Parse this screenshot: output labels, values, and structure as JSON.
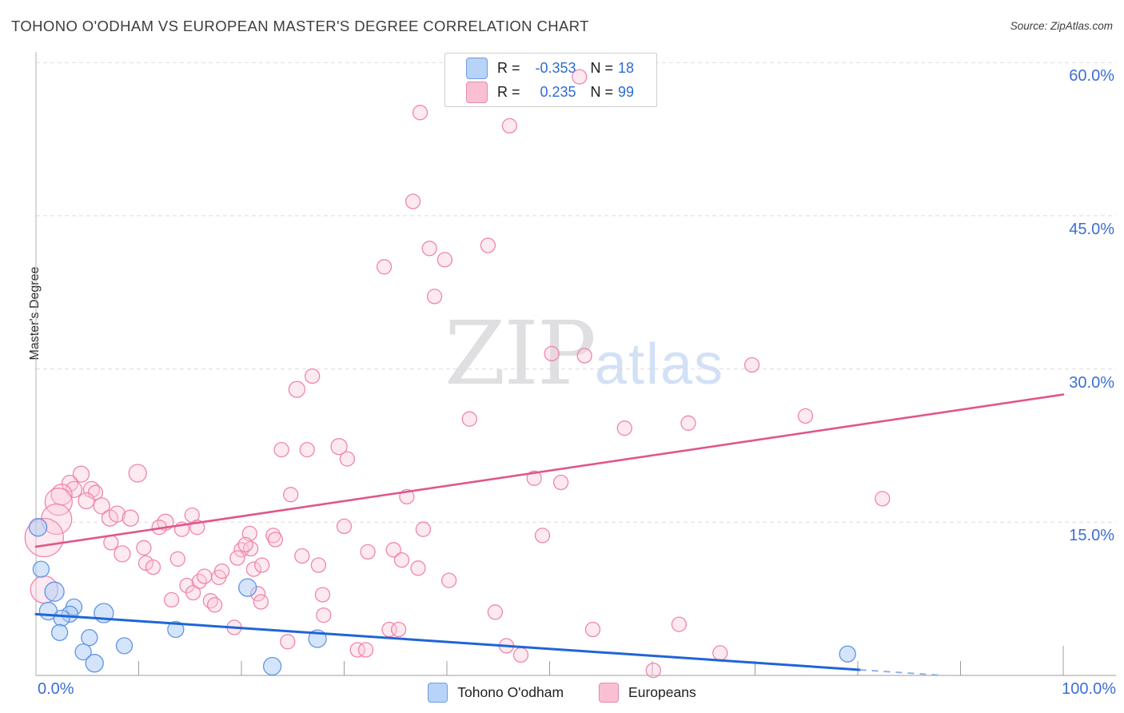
{
  "title": "TOHONO O'ODHAM VS EUROPEAN MASTER'S DEGREE CORRELATION CHART",
  "source": "Source: ZipAtlas.com",
  "watermark": {
    "zip": "ZIP",
    "atlas": "atlas"
  },
  "legend_box": {
    "rows": [
      {
        "series": "Tohono O'odham",
        "r_label": "R =",
        "r_value": "-0.353",
        "n_label": "N =",
        "n_value": "18"
      },
      {
        "series": "Europeans",
        "r_label": "R =",
        "r_value": "0.235",
        "n_label": "N =",
        "n_value": "99"
      }
    ]
  },
  "bottom_legend": {
    "items": [
      {
        "label": "Tohono O'odham",
        "color": "#b8d3f7"
      },
      {
        "label": "Europeans",
        "color": "#f9c0d4"
      }
    ]
  },
  "colors": {
    "axis_label_blue": "#3d6ed3",
    "grid": "#dcdcdc",
    "axis_line": "#b0b0b0",
    "tick": "#9c9c9c",
    "pink_fill": "#f9c7d9",
    "pink_stroke": "#ee7fa9",
    "blue_fill": "#a9cbf7",
    "blue_stroke": "#5b8fe0",
    "trend_pink": "#e0568c",
    "trend_blue": "#1f65d6",
    "trend_blue_dash": "#8fb1e8"
  },
  "chart_data": {
    "type": "scatter",
    "title": "TOHONO O'ODHAM VS EUROPEAN MASTER'S DEGREE CORRELATION CHART",
    "xlabel": "",
    "ylabel": "Master's Degree",
    "xlim": [
      0,
      100
    ],
    "ylim": [
      0,
      61
    ],
    "grid": true,
    "legend_position": "bottom-center",
    "x_tick_labels": [
      {
        "value": 0,
        "label": "0.0%",
        "align": "left"
      },
      {
        "value": 100,
        "label": "100.0%",
        "align": "right"
      }
    ],
    "x_minor_ticks": [
      10,
      20,
      30,
      40,
      50,
      60,
      70,
      80,
      90,
      100
    ],
    "y_ticks": [
      {
        "value": 60,
        "label": "60.0%"
      },
      {
        "value": 45,
        "label": "45.0%"
      },
      {
        "value": 30,
        "label": "30.0%"
      },
      {
        "value": 15,
        "label": "15.0%"
      }
    ],
    "series": [
      {
        "name": "Europeans",
        "R": 0.235,
        "N": 99,
        "front_indices": [
          2
        ],
        "points": [
          [
            37.4,
            55.1,
            9
          ],
          [
            46.1,
            53.8,
            9
          ],
          [
            52.9,
            58.6,
            9
          ],
          [
            36.7,
            46.4,
            9
          ],
          [
            38.3,
            41.8,
            9
          ],
          [
            39.8,
            40.7,
            9
          ],
          [
            44.0,
            42.1,
            9
          ],
          [
            33.9,
            40.0,
            9
          ],
          [
            38.8,
            37.1,
            9
          ],
          [
            26.9,
            29.3,
            9
          ],
          [
            25.4,
            28.0,
            10
          ],
          [
            50.2,
            31.5,
            9
          ],
          [
            53.4,
            31.3,
            9
          ],
          [
            69.7,
            30.4,
            9
          ],
          [
            23.9,
            22.1,
            9
          ],
          [
            26.4,
            22.1,
            9
          ],
          [
            29.5,
            22.4,
            10
          ],
          [
            30.3,
            21.2,
            9
          ],
          [
            42.2,
            25.1,
            9
          ],
          [
            57.3,
            24.2,
            9
          ],
          [
            63.5,
            24.7,
            9
          ],
          [
            74.9,
            25.4,
            9
          ],
          [
            4.4,
            19.7,
            10
          ],
          [
            3.3,
            18.8,
            10
          ],
          [
            3.7,
            18.2,
            10
          ],
          [
            2.5,
            17.7,
            13
          ],
          [
            2.2,
            17.0,
            17
          ],
          [
            5.4,
            18.2,
            10
          ],
          [
            5.8,
            17.9,
            9
          ],
          [
            4.9,
            17.1,
            10
          ],
          [
            2.0,
            15.3,
            19
          ],
          [
            0.8,
            13.5,
            24
          ],
          [
            0.8,
            8.4,
            17
          ],
          [
            9.9,
            19.8,
            11
          ],
          [
            6.4,
            16.6,
            10
          ],
          [
            7.2,
            15.4,
            10
          ],
          [
            7.9,
            15.8,
            10
          ],
          [
            9.2,
            15.4,
            10
          ],
          [
            12.6,
            15.0,
            10
          ],
          [
            12.0,
            14.5,
            9
          ],
          [
            14.2,
            14.3,
            9
          ],
          [
            15.2,
            15.7,
            9
          ],
          [
            15.7,
            14.5,
            9
          ],
          [
            7.3,
            13.0,
            9
          ],
          [
            8.4,
            11.9,
            10
          ],
          [
            10.5,
            12.5,
            9
          ],
          [
            10.7,
            11.0,
            9
          ],
          [
            11.4,
            10.6,
            9
          ],
          [
            13.8,
            11.4,
            9
          ],
          [
            13.2,
            7.4,
            9
          ],
          [
            14.7,
            8.8,
            9
          ],
          [
            15.9,
            9.2,
            9
          ],
          [
            16.4,
            9.7,
            9
          ],
          [
            15.3,
            8.1,
            9
          ],
          [
            17.0,
            7.3,
            9
          ],
          [
            17.4,
            6.9,
            9
          ],
          [
            17.8,
            9.6,
            9
          ],
          [
            18.1,
            10.2,
            9
          ],
          [
            19.3,
            4.7,
            9
          ],
          [
            20.0,
            12.3,
            9
          ],
          [
            19.6,
            11.5,
            9
          ],
          [
            20.9,
            12.4,
            9
          ],
          [
            20.8,
            13.9,
            9
          ],
          [
            20.4,
            12.8,
            9
          ],
          [
            21.2,
            10.4,
            9
          ],
          [
            22.0,
            10.8,
            9
          ],
          [
            21.6,
            8.0,
            9
          ],
          [
            21.9,
            7.2,
            9
          ],
          [
            23.1,
            13.7,
            9
          ],
          [
            23.3,
            13.3,
            9
          ],
          [
            24.5,
            3.3,
            9
          ],
          [
            24.8,
            17.7,
            9
          ],
          [
            25.9,
            11.7,
            9
          ],
          [
            27.5,
            10.8,
            9
          ],
          [
            27.9,
            7.9,
            9
          ],
          [
            28.0,
            5.9,
            9
          ],
          [
            30.0,
            14.6,
            9
          ],
          [
            31.3,
            2.5,
            9
          ],
          [
            32.1,
            2.5,
            9
          ],
          [
            34.4,
            4.5,
            9
          ],
          [
            35.3,
            4.5,
            9
          ],
          [
            32.3,
            12.1,
            9
          ],
          [
            34.8,
            12.3,
            9
          ],
          [
            35.6,
            11.3,
            9
          ],
          [
            36.1,
            17.5,
            9
          ],
          [
            37.2,
            10.5,
            9
          ],
          [
            37.7,
            14.3,
            9
          ],
          [
            40.2,
            9.3,
            9
          ],
          [
            44.7,
            6.2,
            9
          ],
          [
            45.8,
            2.9,
            9
          ],
          [
            47.2,
            2.0,
            9
          ],
          [
            48.5,
            19.3,
            9
          ],
          [
            49.3,
            13.7,
            9
          ],
          [
            51.1,
            18.9,
            9
          ],
          [
            54.2,
            4.5,
            9
          ],
          [
            60.1,
            0.5,
            9
          ],
          [
            62.6,
            5.0,
            9
          ],
          [
            66.6,
            2.2,
            9
          ],
          [
            82.4,
            17.3,
            9
          ]
        ],
        "trend": {
          "x1": 0,
          "y1": 12.6,
          "x2": 100,
          "y2": 27.5
        }
      },
      {
        "name": "Tohono O'odham",
        "R": -0.353,
        "N": 18,
        "front_indices": [],
        "points": [
          [
            0.2,
            14.5,
            11
          ],
          [
            0.5,
            10.4,
            10
          ],
          [
            1.8,
            8.2,
            12
          ],
          [
            1.2,
            6.3,
            11
          ],
          [
            3.7,
            6.7,
            10
          ],
          [
            3.3,
            6.0,
            10
          ],
          [
            2.5,
            5.6,
            10
          ],
          [
            2.3,
            4.2,
            10
          ],
          [
            6.6,
            6.1,
            12
          ],
          [
            5.2,
            3.7,
            10
          ],
          [
            4.6,
            2.3,
            10
          ],
          [
            5.7,
            1.2,
            11
          ],
          [
            8.6,
            2.9,
            10
          ],
          [
            13.6,
            4.5,
            10
          ],
          [
            20.6,
            8.6,
            11
          ],
          [
            23.0,
            0.9,
            11
          ],
          [
            27.4,
            3.6,
            11
          ],
          [
            79.0,
            2.1,
            10
          ]
        ],
        "trend": {
          "x1": 0,
          "y1": 6.0,
          "x2": 80.2,
          "y2": 0.55
        },
        "trend_dashed_extension": {
          "x1": 80.2,
          "y1": 0.55,
          "x2": 88.3,
          "y2": 0.0
        }
      }
    ]
  }
}
